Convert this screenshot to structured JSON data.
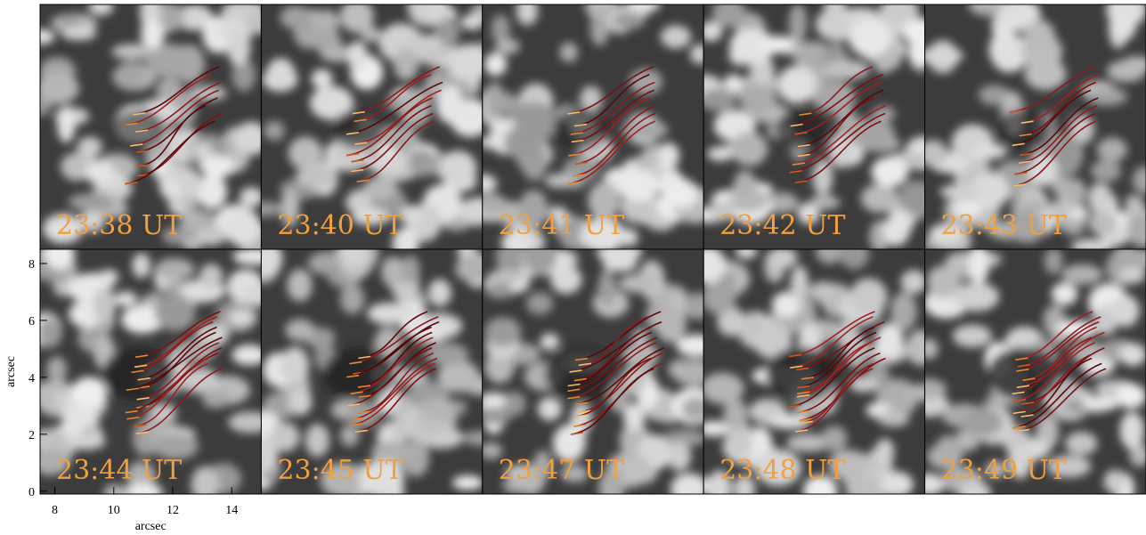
{
  "panels": [
    {
      "label": "23:38 UT"
    },
    {
      "label": "23:40 UT"
    },
    {
      "label": "23:41 UT"
    },
    {
      "label": "23:42 UT"
    },
    {
      "label": "23:43 UT"
    },
    {
      "label": "23:44 UT"
    },
    {
      "label": "23:45 UT"
    },
    {
      "label": "23:47 UT"
    },
    {
      "label": "23:48 UT"
    },
    {
      "label": "23:49 UT"
    }
  ],
  "axes": {
    "xlabel": "arcsec",
    "ylabel": "arcsec",
    "xlim": [
      7.5,
      15
    ],
    "ylim": [
      -0.1,
      8.5
    ],
    "xticks": [
      8,
      10,
      12,
      14
    ],
    "yticks": [
      0,
      2,
      4,
      6,
      8
    ]
  }
}
